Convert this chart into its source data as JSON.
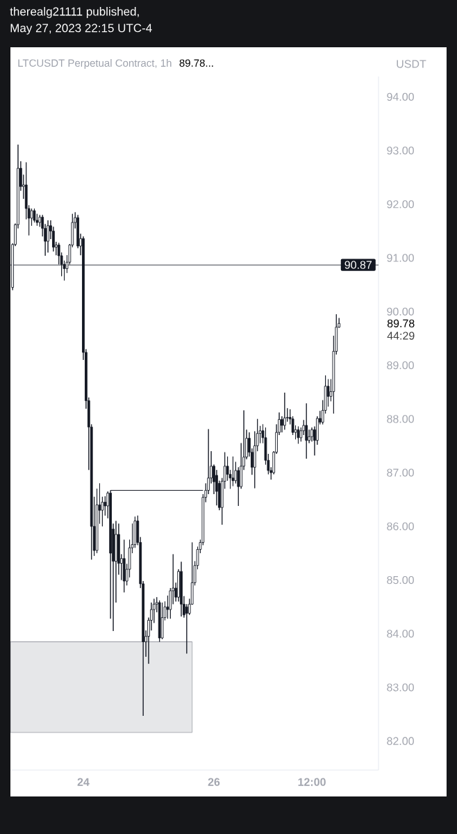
{
  "chart_data": {
    "type": "candlestick",
    "title": "LTCUSDT Perpetual Contract, 1h",
    "ylabel": "USDT",
    "color": "#131722",
    "x": [
      "2023-05-22T22:00",
      "2023-05-22T23:00",
      "2023-05-23T00:00",
      "2023-05-23T01:00",
      "2023-05-23T02:00",
      "2023-05-23T03:00",
      "2023-05-23T04:00",
      "2023-05-23T05:00",
      "2023-05-23T06:00",
      "2023-05-23T07:00",
      "2023-05-23T08:00",
      "2023-05-23T09:00",
      "2023-05-23T10:00",
      "2023-05-23T11:00",
      "2023-05-23T12:00",
      "2023-05-23T13:00",
      "2023-05-23T14:00",
      "2023-05-23T15:00",
      "2023-05-23T16:00",
      "2023-05-23T17:00",
      "2023-05-23T18:00",
      "2023-05-23T19:00",
      "2023-05-23T20:00",
      "2023-05-23T21:00",
      "2023-05-23T22:00",
      "2023-05-23T23:00",
      "2023-05-24T00:00",
      "2023-05-24T01:00",
      "2023-05-24T02:00",
      "2023-05-24T03:00",
      "2023-05-24T04:00",
      "2023-05-24T05:00",
      "2023-05-24T06:00",
      "2023-05-24T07:00",
      "2023-05-24T08:00",
      "2023-05-24T09:00",
      "2023-05-24T10:00",
      "2023-05-24T11:00",
      "2023-05-24T12:00",
      "2023-05-24T13:00",
      "2023-05-24T14:00",
      "2023-05-24T15:00",
      "2023-05-24T16:00",
      "2023-05-24T17:00",
      "2023-05-24T18:00",
      "2023-05-24T19:00",
      "2023-05-24T20:00",
      "2023-05-24T21:00",
      "2023-05-24T22:00",
      "2023-05-24T23:00",
      "2023-05-25T00:00",
      "2023-05-25T01:00",
      "2023-05-25T02:00",
      "2023-05-25T03:00",
      "2023-05-25T04:00",
      "2023-05-25T05:00",
      "2023-05-25T06:00",
      "2023-05-25T07:00",
      "2023-05-25T08:00",
      "2023-05-25T09:00",
      "2023-05-25T10:00",
      "2023-05-25T11:00",
      "2023-05-25T12:00",
      "2023-05-25T13:00",
      "2023-05-25T14:00",
      "2023-05-25T15:00",
      "2023-05-25T16:00",
      "2023-05-25T17:00",
      "2023-05-25T18:00",
      "2023-05-25T19:00",
      "2023-05-25T20:00",
      "2023-05-25T21:00",
      "2023-05-25T22:00",
      "2023-05-25T23:00",
      "2023-05-26T00:00",
      "2023-05-26T01:00",
      "2023-05-26T02:00",
      "2023-05-26T03:00",
      "2023-05-26T04:00",
      "2023-05-26T05:00",
      "2023-05-26T06:00",
      "2023-05-26T07:00",
      "2023-05-26T08:00",
      "2023-05-26T09:00",
      "2023-05-26T10:00",
      "2023-05-26T11:00",
      "2023-05-26T12:00",
      "2023-05-26T13:00",
      "2023-05-26T14:00",
      "2023-05-26T15:00",
      "2023-05-26T16:00",
      "2023-05-26T17:00",
      "2023-05-26T18:00",
      "2023-05-26T19:00",
      "2023-05-26T20:00",
      "2023-05-26T21:00",
      "2023-05-26T22:00",
      "2023-05-26T23:00",
      "2023-05-27T00:00",
      "2023-05-27T01:00",
      "2023-05-27T02:00",
      "2023-05-27T03:00",
      "2023-05-27T04:00",
      "2023-05-27T05:00",
      "2023-05-27T06:00",
      "2023-05-27T07:00",
      "2023-05-27T08:00",
      "2023-05-27T09:00",
      "2023-05-27T10:00",
      "2023-05-27T11:00",
      "2023-05-27T12:00",
      "2023-05-27T13:00",
      "2023-05-27T14:00",
      "2023-05-27T15:00",
      "2023-05-27T16:00",
      "2023-05-27T17:00",
      "2023-05-27T18:00",
      "2023-05-27T19:00",
      "2023-05-27T20:00",
      "2023-05-27T21:00",
      "2023-05-27T22:00"
    ],
    "ohlc": [
      [
        90.45,
        91.27,
        90.4,
        91.25
      ],
      [
        91.25,
        91.64,
        91.22,
        91.62
      ],
      [
        91.62,
        93.11,
        91.55,
        92.67
      ],
      [
        92.67,
        92.8,
        92.25,
        92.33
      ],
      [
        92.33,
        92.55,
        92.1,
        92.36
      ],
      [
        92.36,
        92.78,
        91.72,
        91.92
      ],
      [
        91.92,
        91.98,
        91.42,
        91.74
      ],
      [
        91.74,
        91.92,
        91.6,
        91.88
      ],
      [
        91.88,
        91.92,
        91.66,
        91.7
      ],
      [
        91.7,
        91.82,
        91.6,
        91.66
      ],
      [
        91.66,
        91.8,
        91.58,
        91.76
      ],
      [
        91.76,
        91.8,
        91.4,
        91.55
      ],
      [
        91.55,
        91.63,
        91.04,
        91.31
      ],
      [
        91.31,
        91.7,
        91.1,
        91.6
      ],
      [
        91.6,
        91.7,
        91.35,
        91.5
      ],
      [
        91.5,
        91.58,
        91.12,
        91.2
      ],
      [
        91.2,
        91.3,
        91.05,
        91.24
      ],
      [
        91.24,
        91.28,
        90.88,
        91.04
      ],
      [
        91.04,
        91.1,
        90.66,
        90.88
      ],
      [
        90.88,
        90.95,
        90.58,
        90.8
      ],
      [
        90.8,
        91.05,
        90.72,
        90.92
      ],
      [
        90.92,
        91.26,
        90.88,
        91.24
      ],
      [
        91.24,
        91.82,
        91.2,
        91.66
      ],
      [
        91.66,
        91.85,
        91.55,
        91.75
      ],
      [
        91.75,
        91.8,
        91.18,
        91.22
      ],
      [
        91.22,
        91.45,
        91.05,
        91.36
      ],
      [
        91.36,
        91.4,
        89.1,
        89.24
      ],
      [
        89.24,
        89.3,
        88.19,
        88.34
      ],
      [
        88.34,
        88.4,
        87.05,
        87.85
      ],
      [
        87.85,
        87.9,
        85.38,
        86.0
      ],
      [
        86.0,
        86.55,
        85.45,
        85.55
      ],
      [
        85.55,
        86.7,
        85.5,
        86.4
      ],
      [
        86.4,
        86.8,
        86.05,
        86.3
      ],
      [
        86.3,
        86.55,
        86.0,
        86.45
      ],
      [
        86.45,
        86.56,
        86.2,
        86.38
      ],
      [
        86.38,
        86.65,
        86.15,
        86.62
      ],
      [
        86.62,
        86.67,
        84.28,
        85.5
      ],
      [
        85.95,
        86.05,
        84.05,
        85.35
      ],
      [
        85.35,
        86.1,
        84.58,
        85.85
      ],
      [
        85.85,
        86.05,
        85.1,
        85.31
      ],
      [
        85.31,
        85.48,
        85.0,
        85.4
      ],
      [
        85.4,
        85.75,
        84.77,
        84.98
      ],
      [
        84.98,
        85.3,
        84.9,
        85.2
      ],
      [
        85.2,
        85.75,
        85.05,
        85.6
      ],
      [
        85.6,
        86.05,
        85.5,
        85.66
      ],
      [
        85.66,
        86.18,
        85.6,
        86.1
      ],
      [
        86.1,
        86.2,
        85.65,
        85.7
      ],
      [
        85.7,
        85.8,
        84.85,
        84.93
      ],
      [
        84.93,
        84.98,
        82.47,
        83.85
      ],
      [
        83.85,
        84.06,
        83.57,
        83.95
      ],
      [
        83.95,
        84.3,
        83.44,
        84.25
      ],
      [
        84.25,
        84.58,
        84.06,
        84.45
      ],
      [
        84.45,
        84.65,
        84.2,
        84.55
      ],
      [
        84.55,
        84.68,
        84.4,
        84.58
      ],
      [
        84.58,
        84.62,
        83.85,
        83.92
      ],
      [
        83.92,
        84.58,
        83.9,
        84.3
      ],
      [
        84.3,
        84.6,
        84.25,
        84.5
      ],
      [
        84.5,
        84.71,
        84.28,
        84.45
      ],
      [
        84.45,
        84.85,
        84.28,
        84.8
      ],
      [
        84.8,
        85.48,
        84.55,
        84.85
      ],
      [
        84.85,
        84.95,
        84.6,
        84.68
      ],
      [
        84.68,
        85.2,
        84.6,
        85.16
      ],
      [
        85.16,
        85.34,
        84.32,
        84.55
      ],
      [
        84.55,
        84.7,
        84.3,
        84.35
      ],
      [
        84.5,
        84.55,
        83.63,
        84.38
      ],
      [
        84.38,
        84.65,
        84.35,
        84.55
      ],
      [
        84.55,
        85.7,
        84.54,
        84.95
      ],
      [
        84.95,
        85.35,
        84.9,
        85.27
      ],
      [
        85.27,
        85.62,
        85.2,
        85.57
      ],
      [
        85.57,
        85.75,
        85.5,
        85.7
      ],
      [
        85.7,
        86.6,
        85.65,
        86.54
      ],
      [
        86.54,
        86.8,
        86.45,
        86.67
      ],
      [
        86.67,
        87.81,
        86.6,
        86.9
      ],
      [
        86.9,
        87.4,
        86.8,
        87.12
      ],
      [
        87.12,
        87.15,
        86.6,
        86.83
      ],
      [
        86.95,
        87.05,
        86.39,
        86.65
      ],
      [
        86.8,
        86.85,
        86.3,
        86.35
      ],
      [
        86.35,
        86.9,
        86.03,
        86.84
      ],
      [
        86.84,
        87.38,
        86.7,
        87.12
      ],
      [
        87.12,
        87.3,
        86.85,
        86.97
      ],
      [
        86.97,
        87.05,
        86.7,
        86.9
      ],
      [
        86.9,
        87.3,
        86.75,
        86.85
      ],
      [
        86.85,
        87.2,
        86.8,
        87.04
      ],
      [
        87.04,
        87.1,
        86.38,
        86.74
      ],
      [
        86.74,
        87.55,
        86.7,
        87.12
      ],
      [
        87.12,
        88.16,
        87.05,
        87.29
      ],
      [
        87.29,
        87.8,
        87.25,
        87.64
      ],
      [
        87.64,
        87.75,
        87.3,
        87.38
      ],
      [
        87.38,
        87.45,
        86.96,
        87.1
      ],
      [
        87.1,
        87.77,
        86.71,
        87.5
      ],
      [
        87.5,
        88.0,
        87.4,
        87.73
      ],
      [
        87.73,
        87.87,
        87.55,
        87.78
      ],
      [
        87.78,
        87.9,
        87.55,
        87.65
      ],
      [
        87.65,
        87.84,
        87.15,
        87.23
      ],
      [
        87.23,
        87.35,
        86.97,
        87.04
      ],
      [
        87.04,
        87.1,
        86.87,
        87.0
      ],
      [
        87.0,
        87.4,
        86.97,
        87.38
      ],
      [
        87.38,
        87.9,
        87.35,
        87.75
      ],
      [
        87.75,
        88.12,
        87.7,
        87.99
      ],
      [
        87.99,
        88.05,
        87.75,
        87.88
      ],
      [
        87.88,
        88.49,
        87.8,
        88.02
      ],
      [
        88.02,
        88.2,
        87.95,
        88.03
      ],
      [
        88.03,
        88.18,
        87.9,
        88.0
      ],
      [
        88.0,
        88.05,
        87.7,
        87.75
      ],
      [
        87.75,
        87.88,
        87.62,
        87.8
      ],
      [
        87.8,
        87.86,
        87.54,
        87.65
      ],
      [
        87.65,
        87.84,
        87.58,
        87.78
      ],
      [
        87.78,
        87.98,
        87.7,
        87.88
      ],
      [
        87.88,
        88.29,
        87.26,
        87.6
      ],
      [
        87.6,
        87.8,
        87.55,
        87.67
      ],
      [
        87.67,
        87.84,
        87.58,
        87.8
      ],
      [
        87.8,
        87.86,
        87.32,
        87.6
      ],
      [
        87.6,
        88.05,
        87.52,
        88.01
      ],
      [
        88.01,
        88.15,
        87.9,
        87.94
      ],
      [
        87.94,
        88.35,
        87.9,
        88.16
      ],
      [
        88.16,
        88.81,
        88.1,
        88.61
      ],
      [
        88.61,
        88.74,
        88.23,
        88.42
      ],
      [
        88.42,
        88.74,
        88.33,
        88.51
      ],
      [
        88.51,
        89.55,
        88.1,
        89.26
      ],
      [
        89.26,
        89.95,
        89.2,
        89.71
      ],
      [
        89.71,
        89.88,
        89.7,
        89.78
      ]
    ],
    "series": [
      {
        "type": "line",
        "x": [
          "2023-05-22T21:12",
          "2023-05-25T16:00"
        ],
        "values": [
          83.85,
          83.85
        ],
        "lower": [
          82.16,
          82.16
        ],
        "upper": [
          83.85,
          83.85
        ],
        "color": "#9b9ea6"
      },
      {
        "type": "line",
        "x": [
          "2023-05-24T10:00",
          "2023-05-25T20:00"
        ],
        "values": [
          86.67,
          86.67
        ],
        "color": "#131722"
      }
    ],
    "ref_lines": [
      {
        "axis": "y",
        "value": 90.87,
        "label": "90.87",
        "color": "#131722"
      }
    ],
    "xlim": [
      "2023-05-22T21:12",
      "2023-05-28T12:30"
    ],
    "ylim": [
      81.46,
      94.38
    ],
    "xticks": [
      {
        "value": "2023-05-24",
        "label": "24"
      },
      {
        "value": "2023-05-26",
        "label": "26"
      },
      {
        "value": "2023-05-27T12:00",
        "label": "12:00"
      }
    ],
    "yticks": [
      {
        "value": 82,
        "label": "82.00"
      },
      {
        "value": 83,
        "label": "83.00"
      },
      {
        "value": 84,
        "label": "84.00"
      },
      {
        "value": 85,
        "label": "85.00"
      },
      {
        "value": 86,
        "label": "86.00"
      },
      {
        "value": 87,
        "label": "87.00"
      },
      {
        "value": 88,
        "label": "88.00"
      },
      {
        "value": 89,
        "label": "89.00"
      },
      {
        "value": 90,
        "label": "90.00"
      },
      {
        "value": 91,
        "label": "91.00"
      },
      {
        "value": 92,
        "label": "92.00"
      },
      {
        "value": 93,
        "label": "93.00"
      },
      {
        "value": 94,
        "label": "94.00"
      }
    ],
    "annotations": [
      "therealg21111 published,",
      "May 27, 2023 22:15 UTC-4",
      "89.78...",
      "89.78",
      "44:29"
    ]
  }
}
